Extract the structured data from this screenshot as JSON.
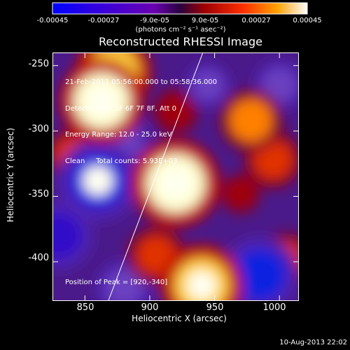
{
  "colorbar": {
    "ticks": [
      "-0.00045",
      "-0.00027",
      "-9.0e-05",
      "9.0e-05",
      "0.00027",
      "0.00045"
    ],
    "units": "(photons cm⁻² s⁻¹ asec⁻²)",
    "range": [
      -0.00045,
      0.00045
    ]
  },
  "chart_data": {
    "type": "heatmap",
    "title": "Reconstructed RHESSI Image",
    "xlabel": "Heliocentric X (arcsec)",
    "ylabel": "Heliocentric Y (arcsec)",
    "xlim": [
      825,
      1015
    ],
    "ylim": [
      -430,
      -240
    ],
    "xticks": [
      "850",
      "900",
      "950",
      "1000"
    ],
    "xtick_values": [
      850,
      900,
      950,
      1000
    ],
    "yticks": [
      "-250",
      "-300",
      "-350",
      "-400"
    ],
    "ytick_values": [
      -250,
      -300,
      -350,
      -400
    ],
    "annotation_lines": [
      "21-Feb-2011 05:56:00.000 to 05:58:36.000",
      "Detectors: 4F 5F 6F 7F 8F, Att 0",
      "Energy Range: 12.0 - 25.0 keV",
      "Clean     Total counts: 5.93E+03"
    ],
    "peak_label": "Position of Peak = [920,-340]",
    "peak": [
      920,
      -340
    ],
    "limb_line": [
      [
        868,
        -430
      ],
      [
        941,
        -240
      ]
    ],
    "sources": [
      {
        "x": 920,
        "y": -340,
        "value": 0.00045
      },
      {
        "x": 863,
        "y": -277,
        "value": 0.00042
      },
      {
        "x": 872,
        "y": -255,
        "value": 0.00036
      },
      {
        "x": 940,
        "y": -418,
        "value": 0.0004
      },
      {
        "x": 905,
        "y": -395,
        "value": 0.00022
      },
      {
        "x": 978,
        "y": -292,
        "value": 0.00026
      },
      {
        "x": 995,
        "y": -322,
        "value": 0.00022
      },
      {
        "x": 920,
        "y": -285,
        "value": 0.00012
      },
      {
        "x": 840,
        "y": -318,
        "value": 0.00016
      },
      {
        "x": 970,
        "y": -348,
        "value": 8e-05
      },
      {
        "x": 1005,
        "y": -398,
        "value": 0.00018
      },
      {
        "x": 860,
        "y": -338,
        "value": -0.0004
      },
      {
        "x": 985,
        "y": -410,
        "value": -0.00036
      },
      {
        "x": 830,
        "y": -380,
        "value": -0.0003
      },
      {
        "x": 880,
        "y": -308,
        "value": -0.00018
      },
      {
        "x": 945,
        "y": -265,
        "value": -0.00012
      },
      {
        "x": 1000,
        "y": -265,
        "value": -0.00016
      },
      {
        "x": 880,
        "y": -420,
        "value": -0.0002
      }
    ]
  },
  "timestamp": "10-Aug-2013 22:02"
}
